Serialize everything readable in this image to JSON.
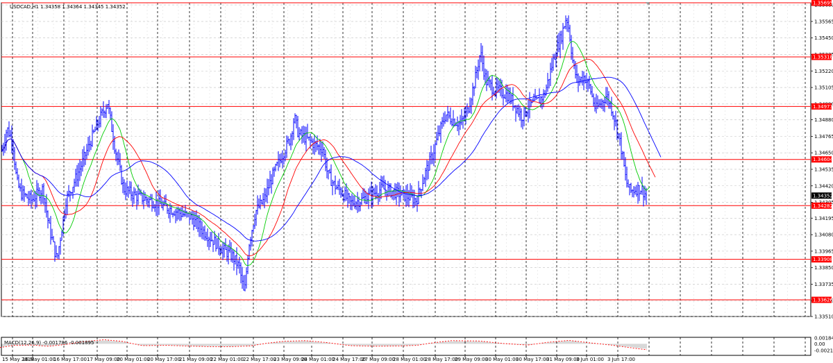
{
  "chart_data": [
    {
      "type": "line",
      "symbol_info": "USDCAD,H1  1.34358 1.34364 1.34345 1.34352",
      "current_price": 1.34352,
      "current_price_label": "1.34352",
      "ylim": [
        1.3351,
        1.35695
      ],
      "price_ticks": [
        "1.35680",
        "1.35565",
        "1.35450",
        "1.35335",
        "1.35220",
        "1.35105",
        "1.34990",
        "1.34880",
        "1.34765",
        "1.34650",
        "1.34535",
        "1.34420",
        "1.34305",
        "1.34195",
        "1.34080",
        "1.33965",
        "1.33850",
        "1.33735",
        "1.33620",
        "1.33510"
      ],
      "time_labels": [
        "15 May 2019",
        "16 May 01:00",
        "16 May 17:00",
        "17 May 09:00",
        "20 May 01:00",
        "20 May 17:00",
        "21 May 09:00",
        "22 May 01:00",
        "22 May 17:00",
        "23 May 09:00",
        "24 May 01:00",
        "24 May 17:00",
        "27 May 09:00",
        "28 May 01:00",
        "28 May 17:00",
        "29 May 09:00",
        "30 May 01:00",
        "30 May 17:00",
        "31 May 09:00",
        "3 Jun 01:00",
        "3 Jun 17:00"
      ],
      "levels": [
        {
          "value": 1.35695,
          "label": "1.35695"
        },
        {
          "value": 1.35318,
          "label": "1.35318"
        },
        {
          "value": 1.34973,
          "label": "1.34973"
        },
        {
          "value": 1.34604,
          "label": "1.34604"
        },
        {
          "value": 1.34282,
          "label": "1.34282"
        },
        {
          "value": 1.33908,
          "label": "1.33908"
        },
        {
          "value": 1.33626,
          "label": "1.33626"
        }
      ],
      "price_anchors": [
        [
          0,
          1.346
        ],
        [
          10,
          1.3482
        ],
        [
          18,
          1.3474
        ],
        [
          24,
          1.3445
        ],
        [
          30,
          1.3437
        ],
        [
          45,
          1.3432
        ],
        [
          62,
          1.344
        ],
        [
          70,
          1.3415
        ],
        [
          82,
          1.339
        ],
        [
          95,
          1.3432
        ],
        [
          110,
          1.3448
        ],
        [
          120,
          1.346
        ],
        [
          132,
          1.3475
        ],
        [
          145,
          1.349
        ],
        [
          155,
          1.35
        ],
        [
          165,
          1.347
        ],
        [
          178,
          1.344
        ],
        [
          195,
          1.3435
        ],
        [
          215,
          1.3432
        ],
        [
          235,
          1.3428
        ],
        [
          255,
          1.3424
        ],
        [
          275,
          1.342
        ],
        [
          290,
          1.3412
        ],
        [
          305,
          1.3405
        ],
        [
          320,
          1.3398
        ],
        [
          335,
          1.3393
        ],
        [
          345,
          1.3385
        ],
        [
          352,
          1.3365
        ],
        [
          358,
          1.34
        ],
        [
          368,
          1.3424
        ],
        [
          380,
          1.3432
        ],
        [
          392,
          1.3448
        ],
        [
          405,
          1.3462
        ],
        [
          418,
          1.3475
        ],
        [
          424,
          1.349
        ],
        [
          430,
          1.3478
        ],
        [
          442,
          1.3475
        ],
        [
          455,
          1.347
        ],
        [
          465,
          1.3468
        ],
        [
          472,
          1.345
        ],
        [
          482,
          1.3442
        ],
        [
          492,
          1.3438
        ],
        [
          505,
          1.343
        ],
        [
          520,
          1.3432
        ],
        [
          535,
          1.3436
        ],
        [
          550,
          1.344
        ],
        [
          565,
          1.3438
        ],
        [
          585,
          1.3435
        ],
        [
          600,
          1.3432
        ],
        [
          612,
          1.345
        ],
        [
          622,
          1.3462
        ],
        [
          632,
          1.3478
        ],
        [
          642,
          1.3492
        ],
        [
          652,
          1.3488
        ],
        [
          664,
          1.3485
        ],
        [
          674,
          1.3495
        ],
        [
          684,
          1.3515
        ],
        [
          692,
          1.3535
        ],
        [
          700,
          1.3515
        ],
        [
          710,
          1.351
        ],
        [
          720,
          1.3508
        ],
        [
          732,
          1.3505
        ],
        [
          742,
          1.3498
        ],
        [
          752,
          1.349
        ],
        [
          762,
          1.3498
        ],
        [
          772,
          1.35
        ],
        [
          784,
          1.3505
        ],
        [
          792,
          1.352
        ],
        [
          800,
          1.3535
        ],
        [
          808,
          1.3545
        ],
        [
          816,
          1.356
        ],
        [
          820,
          1.355
        ],
        [
          826,
          1.3525
        ],
        [
          832,
          1.3515
        ],
        [
          842,
          1.3518
        ],
        [
          850,
          1.351
        ],
        [
          858,
          1.3495
        ],
        [
          866,
          1.35
        ],
        [
          874,
          1.3505
        ],
        [
          882,
          1.3495
        ],
        [
          890,
          1.348
        ],
        [
          896,
          1.3465
        ],
        [
          902,
          1.3445
        ],
        [
          908,
          1.3438
        ],
        [
          916,
          1.344
        ],
        [
          924,
          1.344
        ],
        [
          930,
          1.3436
        ],
        [
          932,
          1.34352
        ]
      ],
      "moving_averages": [
        {
          "color": "#00cc00",
          "period_bars": 30
        },
        {
          "color": "#ff0000",
          "period_bars": 60
        },
        {
          "color": "#0000ff",
          "period_bars": 110
        }
      ],
      "ma_projection_end": [
        {
          "x": 936,
          "y": 1.34412
        },
        {
          "x": 944,
          "y": 1.3448
        },
        {
          "x": 952,
          "y": 1.3462
        }
      ],
      "macd": {
        "label": "MACD(12,26,9) -0.001786 -0.001895",
        "ticks": [
          "0.001843",
          "0.00",
          "-0.002145"
        ],
        "ylim": [
          -0.002145,
          0.001843
        ],
        "signal_anchors": [
          [
            0,
            -0.0012
          ],
          [
            20,
            -0.0005
          ],
          [
            45,
            -0.0004
          ],
          [
            70,
            -0.0008
          ],
          [
            95,
            -0.0002
          ],
          [
            120,
            0.0007
          ],
          [
            150,
            0.0013
          ],
          [
            175,
            0.0008
          ],
          [
            205,
            -0.0006
          ],
          [
            240,
            -0.0005
          ],
          [
            270,
            -0.0007
          ],
          [
            300,
            -0.0009
          ],
          [
            335,
            -0.0009
          ],
          [
            360,
            -0.0007
          ],
          [
            385,
            0.0002
          ],
          [
            410,
            0.0008
          ],
          [
            440,
            0.001
          ],
          [
            470,
            0.0004
          ],
          [
            505,
            -0.0006
          ],
          [
            540,
            -0.0008
          ],
          [
            575,
            -0.0007
          ],
          [
            600,
            -0.0005
          ],
          [
            620,
            0.0002
          ],
          [
            650,
            0.001
          ],
          [
            690,
            0.0009
          ],
          [
            725,
            0.0001
          ],
          [
            760,
            -0.0004
          ],
          [
            790,
            0.0005
          ],
          [
            820,
            0.0011
          ],
          [
            850,
            0.0003
          ],
          [
            880,
            -0.0004
          ],
          [
            900,
            -0.001
          ],
          [
            920,
            -0.0016
          ],
          [
            932,
            -0.0019
          ]
        ]
      }
    }
  ]
}
